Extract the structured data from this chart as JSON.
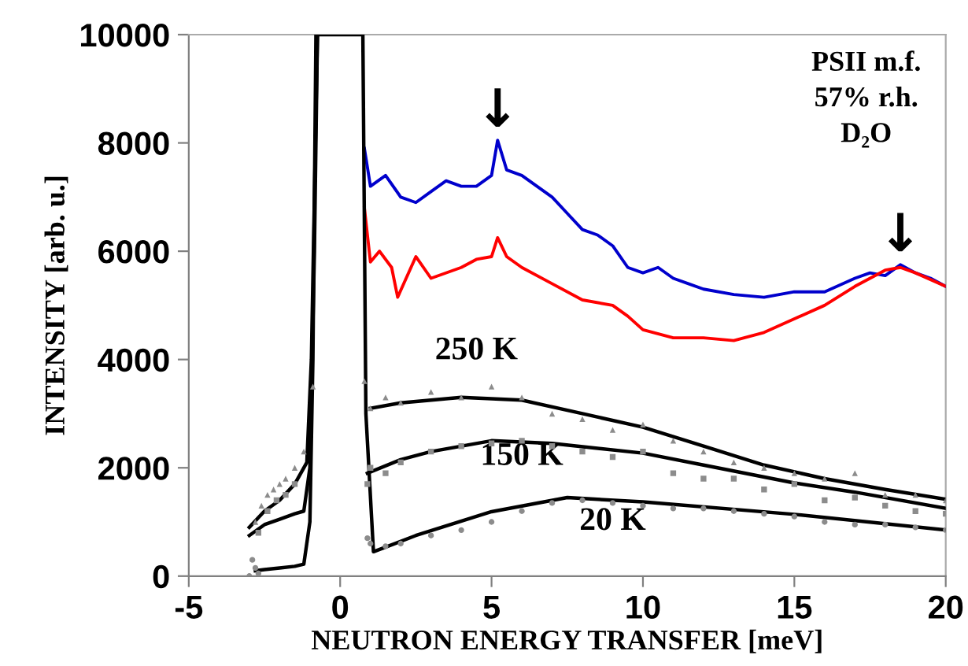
{
  "chart_data": {
    "type": "line",
    "xlabel": "NEUTRON ENERGY TRANSFER [meV]",
    "ylabel": "INTENSITY [arb. u.]",
    "xlim": [
      -5,
      20
    ],
    "ylim": [
      0,
      10000
    ],
    "xticks": [
      -5,
      0,
      5,
      10,
      15,
      20
    ],
    "yticks": [
      0,
      2000,
      4000,
      6000,
      8000,
      10000
    ],
    "grid": false,
    "legend": false,
    "series": [
      {
        "type": "scatter",
        "color": "#8c8c8c",
        "marker": "triangle",
        "x": [
          -2.8,
          -2.6,
          -2.4,
          -2.2,
          -2,
          -1.8,
          -1.5,
          -1.2,
          -0.9,
          0.8,
          1,
          1.5,
          2,
          3,
          4,
          5,
          6,
          7,
          8,
          9,
          10,
          11,
          12,
          13,
          14,
          15,
          16,
          17,
          18,
          19,
          20
        ],
        "values": [
          1000,
          1300,
          1500,
          1600,
          1700,
          1800,
          2000,
          2300,
          3500,
          3600,
          3100,
          3300,
          3200,
          3400,
          3300,
          3500,
          3300,
          3000,
          2900,
          2700,
          2800,
          2500,
          2300,
          2100,
          2000,
          1900,
          1800,
          1900,
          1500,
          1500,
          1400
        ]
      },
      {
        "type": "scatter",
        "color": "#8c8c8c",
        "marker": "square",
        "x": [
          -2.7,
          -2.4,
          -2.1,
          -1.8,
          -1.5,
          0.9,
          1,
          1.5,
          2,
          3,
          4,
          5,
          6,
          7,
          8,
          9,
          10,
          11,
          12,
          13,
          14,
          15,
          16,
          17,
          18,
          19,
          20
        ],
        "values": [
          800,
          1200,
          1400,
          1500,
          1700,
          1700,
          2000,
          1900,
          2100,
          2300,
          2400,
          2450,
          2500,
          2400,
          2300,
          2200,
          2300,
          1900,
          1800,
          1800,
          1600,
          1700,
          1400,
          1450,
          1300,
          1200,
          1150
        ]
      },
      {
        "type": "scatter",
        "color": "#8c8c8c",
        "marker": "circle",
        "x": [
          -3,
          -2.9,
          -2.8,
          -2.7,
          0.9,
          1,
          1.5,
          2,
          3,
          4,
          5,
          6,
          7,
          8,
          9,
          10,
          11,
          12,
          13,
          14,
          15,
          16,
          17,
          18,
          19,
          20
        ],
        "values": [
          0,
          300,
          150,
          50,
          700,
          600,
          550,
          600,
          750,
          850,
          1000,
          1200,
          1350,
          1400,
          1350,
          1300,
          1250,
          1250,
          1200,
          1150,
          1100,
          1000,
          950,
          950,
          900,
          850
        ]
      },
      {
        "color": "#0000cc",
        "x": [
          0.8,
          1,
          1.5,
          2,
          2.5,
          3,
          3.5,
          4,
          4.5,
          5,
          5.2,
          5.5,
          6,
          6.5,
          7,
          7.5,
          8,
          8.5,
          9,
          9.5,
          10,
          10.5,
          11,
          11.5,
          12,
          13,
          14,
          15,
          16,
          17,
          17.5,
          18,
          18.5,
          19,
          19.5,
          20
        ],
        "values": [
          7900,
          7200,
          7400,
          7000,
          6900,
          7100,
          7300,
          7200,
          7200,
          7400,
          8050,
          7500,
          7400,
          7200,
          7000,
          6700,
          6400,
          6300,
          6100,
          5700,
          5600,
          5700,
          5500,
          5400,
          5300,
          5200,
          5150,
          5250,
          5250,
          5500,
          5600,
          5550,
          5750,
          5600,
          5500,
          5350
        ]
      },
      {
        "color": "#ff0000",
        "x": [
          0.8,
          1,
          1.3,
          1.7,
          1.9,
          2.5,
          3,
          4,
          4.5,
          5,
          5.2,
          5.5,
          6,
          7,
          8,
          9,
          9.5,
          10,
          11,
          12,
          13,
          14,
          15,
          16,
          17,
          18,
          18.5,
          19,
          20
        ],
        "values": [
          6800,
          5800,
          6000,
          5700,
          5150,
          5900,
          5500,
          5700,
          5850,
          5900,
          6250,
          5900,
          5700,
          5400,
          5100,
          5000,
          4800,
          4550,
          4400,
          4400,
          4350,
          4500,
          4750,
          5000,
          5350,
          5650,
          5700,
          5600,
          5350
        ]
      },
      {
        "color": "#000000",
        "x": [
          -3,
          -2.5,
          -2,
          -1.5,
          -1.1,
          -0.95,
          -0.85,
          -0.75,
          0.7,
          0.85,
          1,
          2,
          4,
          6,
          8,
          10,
          12,
          14,
          16,
          18,
          20
        ],
        "values": [
          900,
          1200,
          1400,
          1700,
          2100,
          4000,
          7000,
          10000,
          null,
          null,
          3100,
          3200,
          3300,
          3250,
          3000,
          2750,
          2400,
          2050,
          1800,
          1600,
          1420
        ]
      },
      {
        "color": "#000000",
        "x": [
          -3,
          -2.5,
          -2,
          -1.5,
          -1.2,
          -1,
          -0.85,
          -0.75,
          0.7,
          0.85,
          0.9,
          2,
          3,
          5,
          7,
          10,
          12,
          15,
          17,
          20
        ],
        "values": [
          750,
          950,
          1050,
          1150,
          1200,
          2000,
          6000,
          10000,
          null,
          null,
          1900,
          2150,
          2300,
          2500,
          2450,
          2270,
          2050,
          1720,
          1550,
          1250
        ]
      },
      {
        "color": "#000000",
        "x": [
          -2.8,
          -2.5,
          -2,
          -1.5,
          -1.2,
          -1,
          -0.9,
          -0.8,
          0.75,
          0.85,
          1.1,
          2.5,
          5,
          7.5,
          10,
          15,
          20
        ],
        "values": [
          100,
          120,
          150,
          180,
          220,
          1000,
          4000,
          10000,
          10000,
          3000,
          450,
          750,
          1190,
          1450,
          1370,
          1140,
          850
        ]
      }
    ],
    "annotations": [
      {
        "text": "↓",
        "x": 5.2,
        "y": 8100
      },
      {
        "text": "↓",
        "x": 18.5,
        "y": 5800
      },
      {
        "text": "PSII m.f.\n57% r.h.\nD₂O"
      },
      "250 K",
      "150 K",
      "20 K"
    ]
  }
}
